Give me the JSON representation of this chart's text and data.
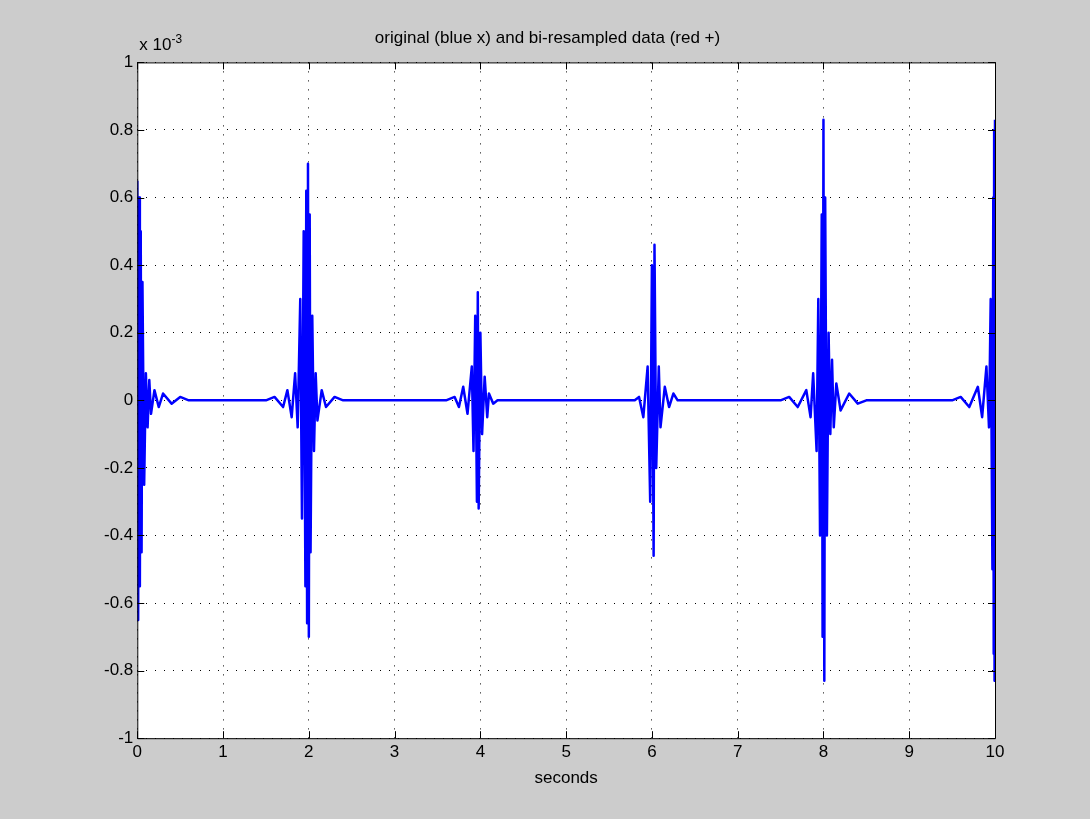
{
  "chart_data": {
    "type": "line",
    "title": "original (blue x) and bi-resampled data (red +)",
    "xlabel": "seconds",
    "annotations": [
      "x 10$^{-3}$"
    ],
    "xlim": [
      0,
      10
    ],
    "xticks": [
      0,
      1,
      2,
      3,
      4,
      5,
      6,
      7,
      8,
      9,
      10
    ],
    "ylim": [
      -1,
      1
    ],
    "yticks": [
      -1,
      -0.8,
      -0.6,
      -0.4,
      -0.2,
      0,
      0.2,
      0.4,
      0.6,
      0.8,
      1
    ],
    "grid": true,
    "marker": "none",
    "line_style": "solid",
    "series": [
      {
        "color": "#0000ff",
        "x": [
          0,
          0.01,
          0.02,
          0.03,
          0.04,
          0.05,
          0.06,
          0.08,
          0.1,
          0.12,
          0.14,
          0.16,
          0.2,
          0.25,
          0.3,
          0.4,
          0.5,
          0.6,
          1.5,
          1.6,
          1.7,
          1.75,
          1.8,
          1.84,
          1.87,
          1.9,
          1.92,
          1.94,
          1.96,
          1.97,
          1.98,
          1.99,
          2.0,
          2.01,
          2.02,
          2.04,
          2.06,
          2.08,
          2.1,
          2.15,
          2.2,
          2.3,
          2.4,
          3.6,
          3.7,
          3.75,
          3.8,
          3.85,
          3.9,
          3.92,
          3.94,
          3.96,
          3.97,
          3.98,
          4.0,
          4.02,
          4.05,
          4.08,
          4.1,
          4.15,
          4.2,
          5.8,
          5.85,
          5.9,
          5.95,
          5.98,
          6.0,
          6.02,
          6.03,
          6.05,
          6.08,
          6.1,
          6.15,
          6.2,
          6.25,
          6.3,
          7.5,
          7.6,
          7.7,
          7.8,
          7.85,
          7.88,
          7.92,
          7.94,
          7.96,
          7.98,
          7.99,
          8.0,
          8.01,
          8.02,
          8.04,
          8.06,
          8.08,
          8.1,
          8.12,
          8.15,
          8.2,
          8.3,
          8.4,
          8.5,
          9.5,
          9.6,
          9.7,
          9.8,
          9.85,
          9.9,
          9.93,
          9.95,
          9.97,
          9.98,
          9.985,
          9.99,
          9.995,
          10
        ],
        "values": [
          0.65,
          -0.65,
          0.6,
          -0.55,
          0.5,
          -0.45,
          0.35,
          -0.25,
          0.08,
          -0.08,
          0.06,
          -0.04,
          0.03,
          -0.02,
          0.02,
          -0.01,
          0.01,
          0,
          0,
          0.01,
          -0.02,
          0.03,
          -0.05,
          0.08,
          -0.08,
          0.3,
          -0.35,
          0.5,
          -0.55,
          0.62,
          -0.66,
          0.7,
          -0.7,
          0.55,
          -0.45,
          0.25,
          -0.15,
          0.08,
          -0.06,
          0.03,
          -0.02,
          0.01,
          0,
          0,
          0.01,
          -0.02,
          0.04,
          -0.04,
          0.1,
          -0.15,
          0.25,
          -0.3,
          0.32,
          -0.32,
          0.2,
          -0.1,
          0.07,
          -0.05,
          0.02,
          -0.01,
          0,
          0,
          0.01,
          -0.05,
          0.1,
          -0.3,
          0.4,
          -0.46,
          0.46,
          -0.2,
          0.1,
          -0.08,
          0.04,
          -0.02,
          0.02,
          0,
          0,
          0.01,
          -0.02,
          0.03,
          -0.05,
          0.08,
          -0.15,
          0.3,
          -0.4,
          0.55,
          -0.7,
          0.83,
          -0.83,
          0.6,
          -0.4,
          0.2,
          -0.1,
          0.12,
          -0.08,
          0.05,
          -0.03,
          0.02,
          -0.01,
          0,
          0,
          0.01,
          -0.02,
          0.04,
          -0.05,
          0.1,
          -0.08,
          0.3,
          -0.5,
          0.6,
          -0.75,
          0.8,
          -0.83,
          0.83
        ]
      }
    ]
  }
}
